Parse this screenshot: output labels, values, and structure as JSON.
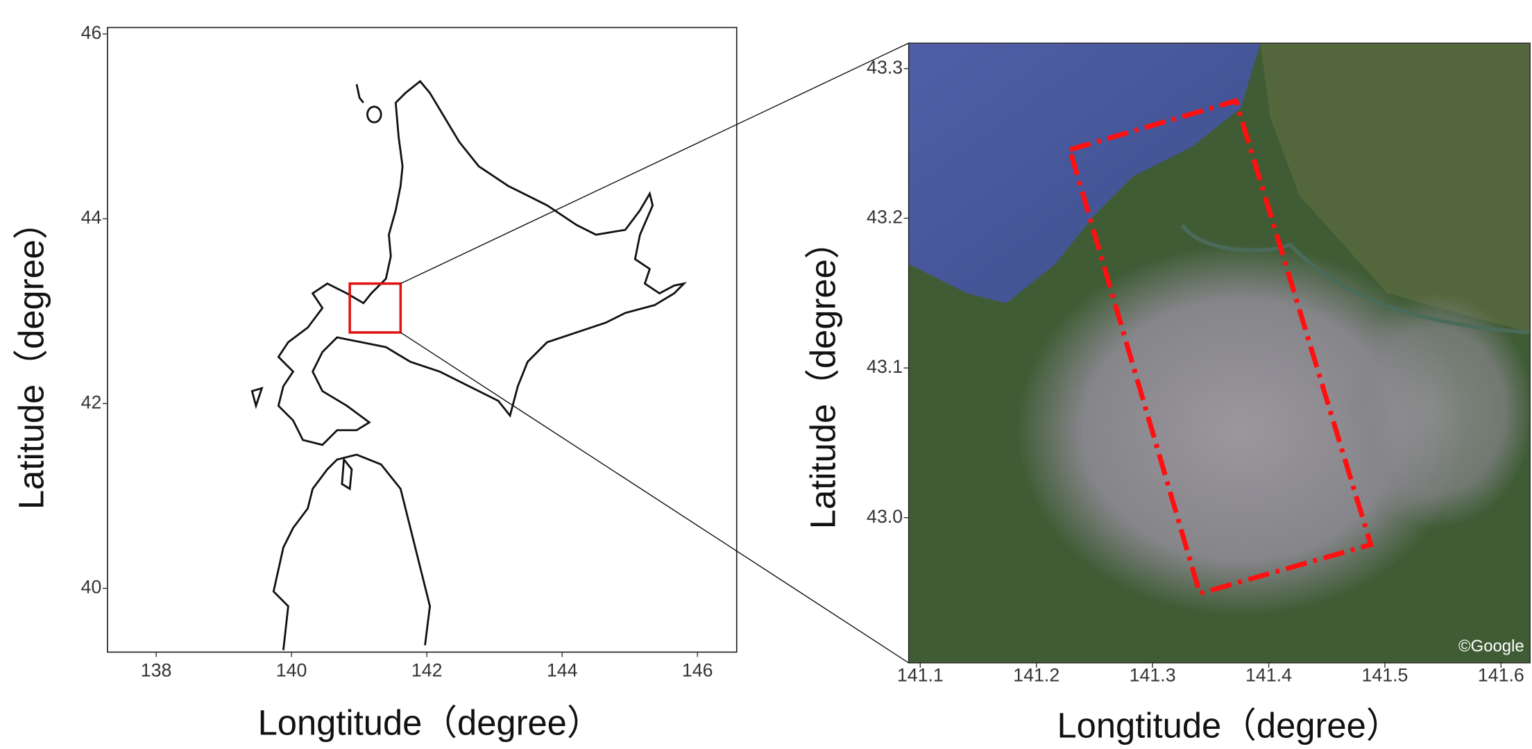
{
  "chart_data": [
    {
      "type": "map",
      "xlabel": "Longtitude（degree）",
      "ylabel": "Latitude（degree）",
      "xlim": [
        137.28,
        146.58
      ],
      "ylim": [
        39.31,
        46.07
      ],
      "xticks": [
        138,
        140,
        142,
        144,
        146
      ],
      "yticks": [
        40,
        42,
        44,
        46
      ]
    },
    {
      "type": "map",
      "xlabel": "Longtitude（degree）",
      "ylabel": "Latitude（degree）",
      "xlim": [
        141.09,
        141.625
      ],
      "ylim": [
        42.903,
        43.317
      ],
      "xticks": [
        141.1,
        141.2,
        141.3,
        141.4,
        141.5,
        141.6
      ],
      "yticks": [
        {
          "value": 43,
          "label": "43.0"
        },
        43.1,
        43.2,
        43.3
      ],
      "attribution": "©Google"
    }
  ]
}
